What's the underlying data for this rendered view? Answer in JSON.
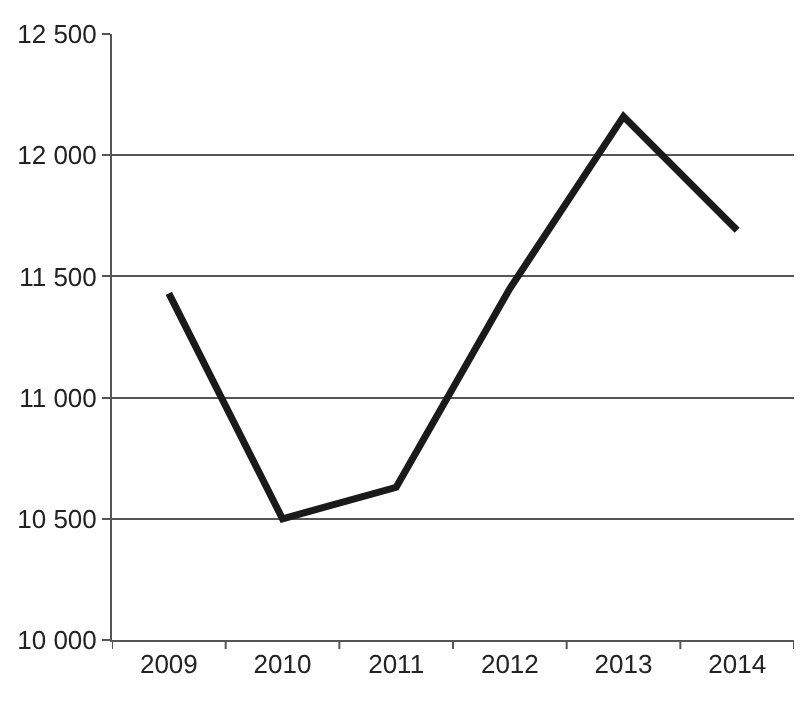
{
  "chart_data": {
    "type": "line",
    "categories": [
      "2009",
      "2010",
      "2011",
      "2012",
      "2013",
      "2014"
    ],
    "series": [
      {
        "color": "#1a1a1a",
        "values": [
          11430,
          10500,
          10630,
          11450,
          12160,
          11690
        ]
      }
    ],
    "ylim": [
      10000,
      12500
    ],
    "yticks": [
      {
        "value": 10000,
        "label": "10 000"
      },
      {
        "value": 10500,
        "label": "10 500"
      },
      {
        "value": 11000,
        "label": "11 000"
      },
      {
        "value": 11500,
        "label": "11 500"
      },
      {
        "value": 12000,
        "label": "12 000"
      },
      {
        "value": 12500,
        "label": "12 500"
      }
    ],
    "grid": "y",
    "marker": "none",
    "line_style": "solid"
  }
}
